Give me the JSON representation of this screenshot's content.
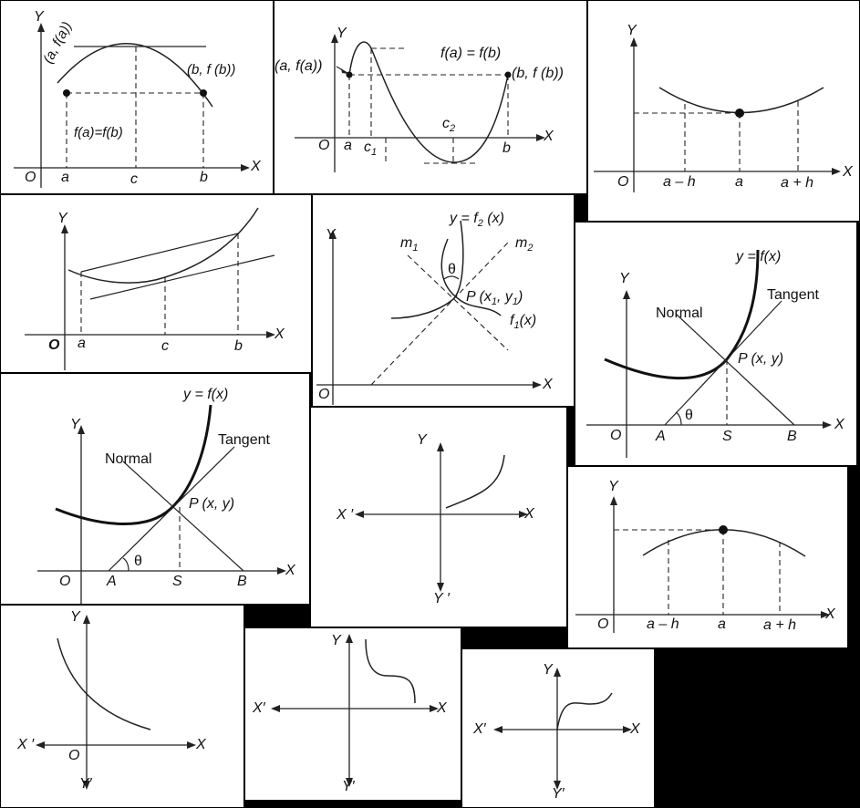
{
  "rolle1": {
    "y": "Y",
    "x": "X",
    "o": "O",
    "a": "a",
    "c": "c",
    "b": "b",
    "pa": "(a, f(a))",
    "pb": "(b, f (b))",
    "eq": "f(a)=f(b)"
  },
  "rolle2": {
    "y": "Y",
    "x": "X",
    "o": "O",
    "a": "a",
    "c1": "c",
    "c1sub": "1",
    "c2": "c",
    "c2sub": "2",
    "b": "b",
    "pa": "(a, f(a))",
    "pb": "(b, f (b))",
    "eq": "f(a) = f(b)"
  },
  "localmin": {
    "y": "Y",
    "x": "X",
    "o": "O",
    "amh": "a – h",
    "a": "a",
    "aph": "a + h"
  },
  "mvt": {
    "y": "Y",
    "x": "X",
    "o": "O",
    "a": "a",
    "c": "c",
    "b": "b"
  },
  "angle": {
    "y": "Y",
    "x": "X",
    "o": "O",
    "f2": "y = f",
    "f2sub": "2",
    "f2end": " (x)",
    "m1": "m",
    "m1sub": "1",
    "m2": "m",
    "m2sub": "2",
    "theta": "θ",
    "p": "P",
    "pcoord": "(x",
    "pcoord_s1": "1",
    "pcoord_mid": ", y",
    "pcoord_s2": "1",
    "pcoord_end": ")",
    "f1": "f",
    "f1sub": "1",
    "f1end": "(x)"
  },
  "tangent1": {
    "y": "Y",
    "x": "X",
    "o": "O",
    "fx": "y = f(x)",
    "tangent": "Tangent",
    "normal": "Normal",
    "p": "P",
    "pxy": " (x, y)",
    "theta": "θ",
    "A": "A",
    "S": "S",
    "B": "B"
  },
  "tangent2": {
    "y": "Y",
    "x": "X",
    "o": "O",
    "fx": "y = f(x)",
    "tangent": "Tangent",
    "normal": "Normal",
    "p": "P",
    "pxy": " (x, y)",
    "theta": "θ",
    "A": "A",
    "S": "S",
    "B": "B"
  },
  "inc": {
    "y": "Y",
    "yp": "Y ′",
    "x": "X",
    "xp": "X ′"
  },
  "localmax": {
    "y": "Y",
    "x": "X",
    "o": "O",
    "amh": "a – h",
    "a": "a",
    "aph": "a + h"
  },
  "dec": {
    "y": "Y",
    "yp": "Y′",
    "x": "X",
    "xp": "X ′",
    "o": "O"
  },
  "dec2": {
    "y": "Y",
    "yp": "Y′",
    "x": "X",
    "xp": "X′"
  },
  "inc2": {
    "y": "Y",
    "yp": "Y′",
    "x": "X",
    "xp": "X′"
  }
}
